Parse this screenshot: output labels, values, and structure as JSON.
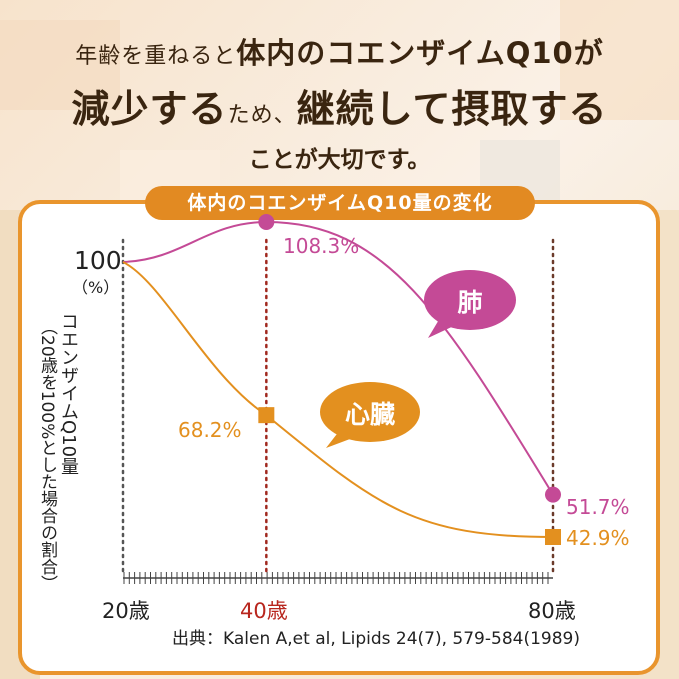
{
  "header": {
    "line1_a": "年齢を重ねると",
    "line1_b": "体内のコエンザイムQ10が",
    "line2_a": "減少する",
    "line2_b": "ため、",
    "line2_c": "継続して摂取する",
    "line3": "ことが大切です。"
  },
  "panel": {
    "title": "体内のコエンザイムQ10量の変化"
  },
  "colors": {
    "lung": "#c44a96",
    "heart": "#e3901f",
    "accent_orange": "#e28a22",
    "dotted_line": "#a0281e"
  },
  "chart_data": {
    "type": "line",
    "title": "体内のコエンザイムQ10量の変化",
    "x_tick_labels": [
      "20歳",
      "40歳",
      "80歳"
    ],
    "y_top_label": "100",
    "y_unit": "（%）",
    "ylabel": "コエンザイムQ10量",
    "ylabel_sub": "（20歳を100%とした場合の割合）",
    "source": "出典：Kalen A,et al, Lipids 24(7), 579-584(1989)",
    "series": [
      {
        "name": "肺",
        "points": [
          {
            "x": 20,
            "y": 100
          },
          {
            "x": 40,
            "y": 108.3
          },
          {
            "x": 80,
            "y": 51.7
          }
        ],
        "labels": [
          "108.3%",
          "51.7%"
        ]
      },
      {
        "name": "心臓",
        "points": [
          {
            "x": 20,
            "y": 100
          },
          {
            "x": 40,
            "y": 68.2
          },
          {
            "x": 80,
            "y": 42.9
          }
        ],
        "labels": [
          "68.2%",
          "42.9%"
        ]
      }
    ]
  }
}
